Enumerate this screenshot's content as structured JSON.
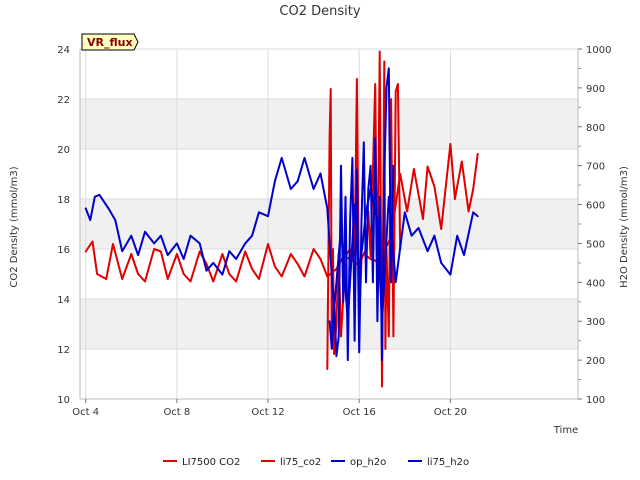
{
  "chart_data": {
    "type": "line",
    "title": "CO2 Density",
    "badge": "VR_flux",
    "xlabel": "Time",
    "ylabel_left": "CO2 Density (mmol/m3)",
    "ylabel_right": "H2O Density (mmol/m3)",
    "x_unit": "days since Oct 4",
    "xlim": [
      -0.25,
      21.6
    ],
    "ylim_left": [
      10,
      24
    ],
    "ylim_right": [
      100,
      1000
    ],
    "x_ticks": [
      {
        "value": 0,
        "label": "Oct 4"
      },
      {
        "value": 4,
        "label": "Oct 8"
      },
      {
        "value": 8,
        "label": "Oct 12"
      },
      {
        "value": 12,
        "label": "Oct 16"
      },
      {
        "value": 16,
        "label": "Oct 20"
      }
    ],
    "y_ticks_left": [
      10,
      12,
      14,
      16,
      18,
      20,
      22,
      24
    ],
    "y_ticks_right": [
      100,
      200,
      300,
      400,
      500,
      600,
      700,
      800,
      900,
      1000
    ],
    "shaded_bands_left": [
      [
        12,
        14
      ],
      [
        16,
        18
      ],
      [
        20,
        22
      ]
    ],
    "legend": [
      {
        "name": "LI7500 CO2",
        "color": "#e00000"
      },
      {
        "name": "li75_co2",
        "color": "#e00000"
      },
      {
        "name": "op_h2o",
        "color": "#0000cc"
      },
      {
        "name": "li75_h2o",
        "color": "#0000cc"
      }
    ],
    "series": [
      {
        "name": "li75_co2",
        "axis": "left",
        "color": "#e00000",
        "x": [
          0.0,
          0.3,
          0.5,
          0.9,
          1.2,
          1.6,
          2.0,
          2.3,
          2.6,
          3.0,
          3.3,
          3.6,
          4.0,
          4.3,
          4.6,
          5.0,
          5.3,
          5.6,
          6.0,
          6.3,
          6.6,
          7.0,
          7.3,
          7.6,
          8.0,
          8.3,
          8.6,
          9.0,
          9.3,
          9.6,
          10.0,
          10.3,
          10.6,
          11.0,
          11.3,
          11.6,
          11.9,
          12.2,
          12.5,
          12.8,
          13.1,
          13.4,
          13.8,
          14.1,
          14.4,
          14.8,
          15.0,
          15.3,
          15.6,
          16.0,
          16.2,
          16.5,
          16.8,
          17.0,
          17.2
        ],
        "y": [
          15.9,
          16.3,
          15.0,
          14.8,
          16.2,
          14.8,
          15.8,
          15.0,
          14.7,
          16.0,
          15.9,
          14.8,
          15.8,
          15.0,
          14.7,
          15.9,
          15.4,
          14.7,
          15.8,
          15.0,
          14.7,
          15.9,
          15.2,
          14.8,
          16.2,
          15.3,
          14.9,
          15.8,
          15.4,
          14.9,
          16.0,
          15.6,
          14.9,
          15.2,
          15.7,
          15.6,
          15.4,
          15.8,
          15.6,
          15.5,
          15.9,
          16.5,
          19.0,
          17.5,
          19.2,
          17.2,
          19.3,
          18.5,
          16.8,
          20.2,
          18.0,
          19.5,
          17.5,
          18.4,
          19.8
        ]
      },
      {
        "name": "LI7500 CO2",
        "axis": "left",
        "color": "#e00000",
        "x": [
          10.6,
          10.7,
          10.75,
          10.8,
          10.85,
          10.9,
          11.0,
          11.1,
          11.2,
          11.3,
          11.45,
          11.6,
          11.7,
          11.8,
          11.9,
          12.0,
          12.1,
          12.2,
          12.3,
          12.4,
          12.5,
          12.7,
          12.8,
          12.9,
          13.0,
          13.1,
          13.15,
          13.2,
          13.3,
          13.4,
          13.5,
          13.6,
          13.7,
          13.8
        ],
        "y": [
          11.2,
          20.5,
          22.4,
          12.0,
          16.0,
          11.8,
          13.0,
          15.8,
          12.5,
          14.0,
          15.8,
          16.0,
          15.6,
          15.8,
          22.8,
          13.0,
          15.6,
          15.8,
          16.0,
          17.5,
          15.7,
          22.6,
          14.2,
          23.9,
          10.5,
          23.5,
          12.0,
          16.0,
          12.5,
          22.0,
          12.5,
          22.3,
          22.6,
          16.0
        ]
      },
      {
        "name": "op_h2o",
        "axis": "right",
        "color": "#0000cc",
        "x": [
          0.0,
          0.2,
          0.4,
          0.6,
          1.0,
          1.3,
          1.6,
          2.0,
          2.3,
          2.6,
          3.0,
          3.3,
          3.6,
          4.0,
          4.3,
          4.6,
          5.0,
          5.3,
          5.6,
          6.0,
          6.3,
          6.6,
          7.0,
          7.3,
          7.6,
          8.0,
          8.3,
          8.6,
          9.0,
          9.3,
          9.6,
          10.0,
          10.3,
          10.6,
          10.9,
          11.2,
          11.5,
          11.8,
          12.0,
          12.3,
          12.5,
          12.8,
          13.0,
          13.3,
          13.6,
          14.0,
          14.3,
          14.6,
          15.0,
          15.3,
          15.6,
          16.0,
          16.3,
          16.6,
          17.0,
          17.2
        ],
        "y": [
          590,
          560,
          620,
          625,
          590,
          560,
          480,
          520,
          470,
          530,
          500,
          520,
          470,
          500,
          460,
          520,
          500,
          430,
          450,
          420,
          480,
          460,
          500,
          520,
          580,
          570,
          660,
          720,
          640,
          660,
          720,
          640,
          680,
          590,
          330,
          540,
          300,
          600,
          420,
          580,
          640,
          560,
          300,
          620,
          400,
          580,
          520,
          540,
          480,
          520,
          450,
          420,
          520,
          470,
          580,
          570
        ]
      },
      {
        "name": "li75_h2o",
        "axis": "right",
        "color": "#0000cc",
        "x": [
          10.7,
          10.8,
          10.9,
          11.0,
          11.1,
          11.2,
          11.3,
          11.4,
          11.5,
          11.6,
          11.7,
          11.8,
          11.9,
          12.0,
          12.1,
          12.2,
          12.3,
          12.4,
          12.5,
          12.6,
          12.7,
          12.8,
          12.9,
          13.0,
          13.1,
          13.2,
          13.3,
          13.4,
          13.5
        ],
        "y": [
          300,
          230,
          360,
          210,
          260,
          700,
          350,
          620,
          200,
          560,
          720,
          250,
          690,
          220,
          560,
          760,
          400,
          640,
          700,
          400,
          770,
          300,
          620,
          200,
          680,
          900,
          950,
          400,
          700
        ]
      }
    ]
  }
}
